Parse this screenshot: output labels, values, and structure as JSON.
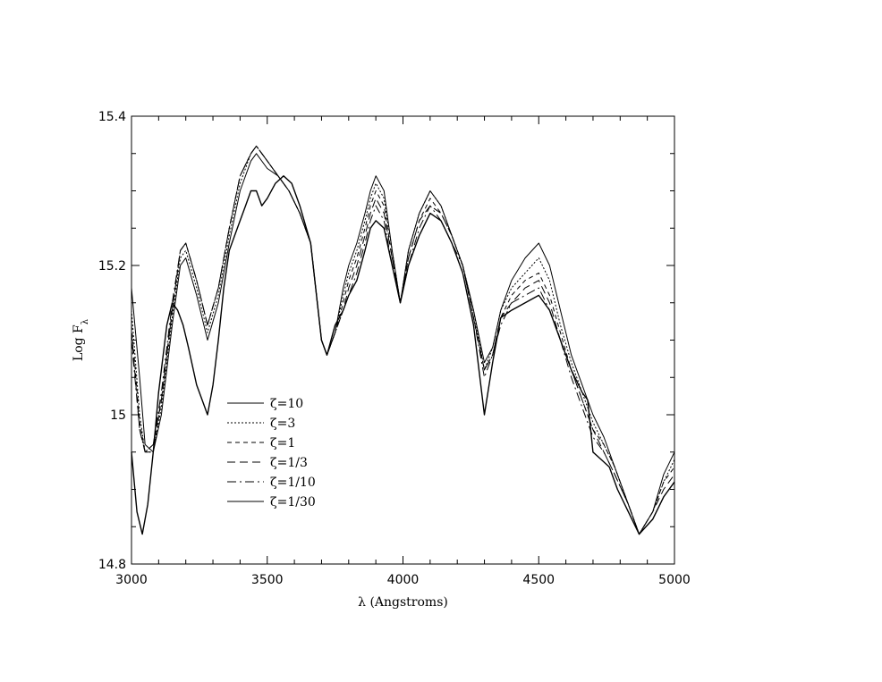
{
  "chart_data": {
    "type": "line",
    "title": "",
    "xlabel": "λ (Angstroms)",
    "ylabel_main": "Log F",
    "ylabel_sub": "λ",
    "xlim": [
      3000,
      5000
    ],
    "ylim": [
      14.8,
      15.4
    ],
    "x_ticks": [
      3000,
      3500,
      4000,
      4500,
      5000
    ],
    "x_tick_labels": [
      "3000",
      "3500",
      "4000",
      "4500",
      "5000"
    ],
    "y_ticks": [
      14.8,
      15.0,
      15.2,
      15.4
    ],
    "y_tick_labels": [
      "14.8",
      "15",
      "15.2",
      "15.4"
    ],
    "grid": false,
    "legend_position": "lower-left",
    "series": [
      {
        "name": "ζ=10",
        "dash": "solid",
        "x": [
          3000,
          3030,
          3050,
          3080,
          3110,
          3150,
          3180,
          3200,
          3240,
          3280,
          3320,
          3360,
          3400,
          3440,
          3460,
          3500,
          3540,
          3580,
          3620,
          3660,
          3700,
          3720,
          3750,
          3780,
          3800,
          3830,
          3860,
          3880,
          3900,
          3930,
          3960,
          3990,
          4020,
          4060,
          4100,
          4140,
          4180,
          4220,
          4260,
          4300,
          4330,
          4360,
          4400,
          4450,
          4500,
          4540,
          4580,
          4620,
          4660,
          4700,
          4740,
          4780,
          4830,
          4870,
          4920,
          4960,
          5000
        ],
        "y": [
          15.17,
          15.05,
          14.96,
          14.95,
          15.0,
          15.12,
          15.2,
          15.21,
          15.16,
          15.1,
          15.15,
          15.23,
          15.3,
          15.34,
          15.35,
          15.33,
          15.32,
          15.3,
          15.27,
          15.23,
          15.1,
          15.08,
          15.11,
          15.17,
          15.2,
          15.23,
          15.27,
          15.3,
          15.32,
          15.3,
          15.22,
          15.15,
          15.22,
          15.27,
          15.3,
          15.28,
          15.24,
          15.2,
          15.14,
          15.07,
          15.09,
          15.14,
          15.18,
          15.21,
          15.23,
          15.2,
          15.14,
          15.08,
          15.04,
          15.0,
          14.97,
          14.93,
          14.88,
          14.84,
          14.87,
          14.92,
          14.95
        ]
      },
      {
        "name": "ζ=3",
        "dash": "2,2",
        "x": [
          3000,
          3030,
          3050,
          3080,
          3110,
          3150,
          3180,
          3200,
          3240,
          3280,
          3320,
          3360,
          3400,
          3440,
          3460,
          3500,
          3540,
          3580,
          3620,
          3660,
          3700,
          3720,
          3750,
          3780,
          3800,
          3830,
          3860,
          3880,
          3900,
          3930,
          3960,
          3990,
          4020,
          4060,
          4100,
          4140,
          4180,
          4220,
          4260,
          4300,
          4330,
          4360,
          4400,
          4450,
          4500,
          4540,
          4580,
          4620,
          4660,
          4700,
          4740,
          4780,
          4830,
          4870,
          4920,
          4960,
          5000
        ],
        "y": [
          15.14,
          15.0,
          14.95,
          14.95,
          15.01,
          15.13,
          15.21,
          15.22,
          15.17,
          15.11,
          15.16,
          15.24,
          15.31,
          15.35,
          15.36,
          15.34,
          15.32,
          15.3,
          15.27,
          15.23,
          15.1,
          15.08,
          15.11,
          15.16,
          15.19,
          15.22,
          15.26,
          15.29,
          15.31,
          15.29,
          15.22,
          15.15,
          15.22,
          15.27,
          15.3,
          15.28,
          15.24,
          15.2,
          15.14,
          15.06,
          15.09,
          15.14,
          15.17,
          15.19,
          15.21,
          15.18,
          15.12,
          15.07,
          15.03,
          14.99,
          14.96,
          14.93,
          14.88,
          14.84,
          14.87,
          14.91,
          14.94
        ]
      },
      {
        "name": "ζ=1",
        "dash": "5,4",
        "x": [
          3000,
          3030,
          3050,
          3080,
          3110,
          3150,
          3180,
          3200,
          3240,
          3280,
          3320,
          3360,
          3400,
          3440,
          3460,
          3500,
          3540,
          3580,
          3620,
          3660,
          3700,
          3720,
          3750,
          3780,
          3800,
          3830,
          3860,
          3880,
          3900,
          3930,
          3960,
          3990,
          4020,
          4060,
          4100,
          4140,
          4180,
          4220,
          4260,
          4300,
          4330,
          4360,
          4400,
          4450,
          4500,
          4540,
          4580,
          4620,
          4660,
          4700,
          4740,
          4780,
          4830,
          4870,
          4920,
          4960,
          5000
        ],
        "y": [
          15.12,
          14.99,
          14.95,
          14.95,
          15.02,
          15.14,
          15.22,
          15.23,
          15.18,
          15.12,
          15.17,
          15.25,
          15.32,
          15.35,
          15.36,
          15.34,
          15.32,
          15.3,
          15.27,
          15.23,
          15.1,
          15.08,
          15.11,
          15.15,
          15.18,
          15.21,
          15.25,
          15.28,
          15.3,
          15.28,
          15.21,
          15.15,
          15.21,
          15.26,
          15.29,
          15.27,
          15.24,
          15.2,
          15.13,
          15.06,
          15.08,
          15.13,
          15.16,
          15.18,
          15.19,
          15.16,
          15.11,
          15.06,
          15.02,
          14.98,
          14.96,
          14.93,
          14.88,
          14.84,
          14.87,
          14.91,
          14.93
        ]
      },
      {
        "name": "ζ=1/3",
        "dash": "9,5",
        "x": [
          3000,
          3030,
          3050,
          3080,
          3110,
          3150,
          3180,
          3200,
          3240,
          3280,
          3320,
          3360,
          3400,
          3440,
          3460,
          3500,
          3540,
          3580,
          3620,
          3660,
          3700,
          3720,
          3750,
          3780,
          3800,
          3830,
          3860,
          3880,
          3900,
          3930,
          3960,
          3990,
          4020,
          4060,
          4100,
          4140,
          4180,
          4220,
          4260,
          4300,
          4330,
          4360,
          4400,
          4450,
          4500,
          4540,
          4580,
          4620,
          4660,
          4700,
          4740,
          4780,
          4830,
          4870,
          4920,
          4960,
          5000
        ],
        "y": [
          15.11,
          14.98,
          14.95,
          14.96,
          15.02,
          15.14,
          15.22,
          15.23,
          15.18,
          15.12,
          15.17,
          15.25,
          15.32,
          15.35,
          15.36,
          15.34,
          15.32,
          15.3,
          15.27,
          15.23,
          15.1,
          15.08,
          15.11,
          15.14,
          15.17,
          15.2,
          15.24,
          15.27,
          15.29,
          15.27,
          15.21,
          15.15,
          15.21,
          15.26,
          15.28,
          15.27,
          15.24,
          15.2,
          15.13,
          15.06,
          15.08,
          15.13,
          15.15,
          15.17,
          15.18,
          15.15,
          15.1,
          15.06,
          15.02,
          14.98,
          14.95,
          14.92,
          14.88,
          14.84,
          14.87,
          14.9,
          14.92
        ]
      },
      {
        "name": "ζ=1/10",
        "dash": "10,4,2,4",
        "x": [
          3000,
          3030,
          3050,
          3080,
          3110,
          3150,
          3180,
          3200,
          3240,
          3280,
          3320,
          3360,
          3400,
          3440,
          3460,
          3500,
          3540,
          3580,
          3620,
          3660,
          3700,
          3720,
          3750,
          3780,
          3800,
          3830,
          3860,
          3880,
          3900,
          3930,
          3960,
          3990,
          4020,
          4060,
          4100,
          4140,
          4180,
          4220,
          4260,
          4300,
          4330,
          4360,
          4400,
          4450,
          4500,
          4540,
          4580,
          4620,
          4660,
          4700,
          4740,
          4780,
          4830,
          4870,
          4920,
          4960,
          5000
        ],
        "y": [
          15.1,
          14.98,
          14.95,
          14.96,
          15.03,
          15.15,
          15.22,
          15.23,
          15.18,
          15.12,
          15.17,
          15.25,
          15.32,
          15.35,
          15.36,
          15.34,
          15.32,
          15.3,
          15.27,
          15.23,
          15.1,
          15.08,
          15.11,
          15.14,
          15.16,
          15.19,
          15.23,
          15.26,
          15.28,
          15.26,
          15.2,
          15.15,
          15.2,
          15.25,
          15.28,
          15.26,
          15.23,
          15.2,
          15.13,
          15.05,
          15.08,
          15.12,
          15.15,
          15.16,
          15.17,
          15.14,
          15.1,
          15.05,
          15.01,
          14.97,
          14.95,
          14.92,
          14.88,
          14.84,
          14.86,
          14.89,
          14.91
        ]
      },
      {
        "name": "ζ=1/30",
        "dash": "solid",
        "x": [
          3000,
          3020,
          3040,
          3060,
          3080,
          3100,
          3130,
          3150,
          3170,
          3190,
          3210,
          3240,
          3260,
          3280,
          3300,
          3320,
          3340,
          3360,
          3380,
          3400,
          3420,
          3440,
          3460,
          3480,
          3500,
          3530,
          3560,
          3590,
          3620,
          3660,
          3700,
          3720,
          3750,
          3780,
          3800,
          3830,
          3860,
          3880,
          3900,
          3930,
          3960,
          3990,
          4020,
          4060,
          4100,
          4140,
          4180,
          4220,
          4260,
          4300,
          4330,
          4360,
          4400,
          4450,
          4500,
          4540,
          4580,
          4620,
          4660,
          4680,
          4700,
          4730,
          4760,
          4790,
          4830,
          4870,
          4920,
          4960,
          5000
        ],
        "y": [
          14.95,
          14.87,
          14.84,
          14.88,
          14.95,
          15.03,
          15.12,
          15.15,
          15.14,
          15.12,
          15.09,
          15.04,
          15.02,
          15.0,
          15.04,
          15.1,
          15.17,
          15.22,
          15.24,
          15.26,
          15.28,
          15.3,
          15.3,
          15.28,
          15.29,
          15.31,
          15.32,
          15.31,
          15.28,
          15.23,
          15.1,
          15.08,
          15.12,
          15.14,
          15.16,
          15.18,
          15.22,
          15.25,
          15.26,
          15.25,
          15.2,
          15.15,
          15.2,
          15.24,
          15.27,
          15.26,
          15.23,
          15.19,
          15.12,
          15.0,
          15.07,
          15.13,
          15.14,
          15.15,
          15.16,
          15.14,
          15.1,
          15.06,
          15.03,
          15.02,
          14.95,
          14.94,
          14.93,
          14.9,
          14.87,
          14.84,
          14.86,
          14.89,
          14.91
        ]
      }
    ]
  }
}
